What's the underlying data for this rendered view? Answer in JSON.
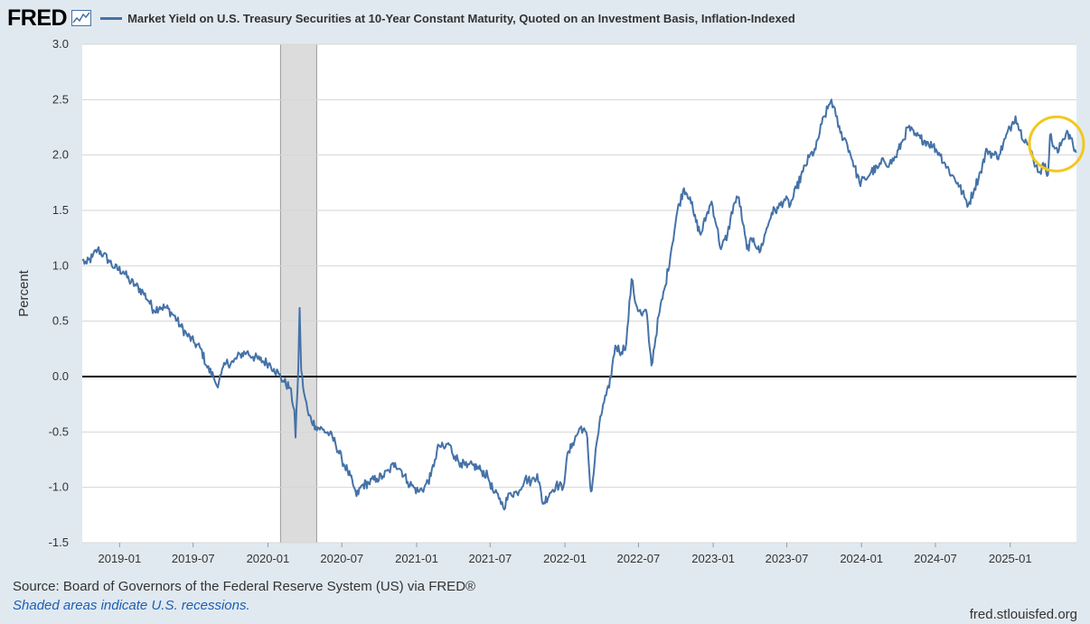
{
  "header": {
    "logo_text": "FRED",
    "series_title": "Market Yield on U.S. Treasury Securities at 10-Year Constant Maturity, Quoted on an Investment Basis, Inflation-Indexed"
  },
  "footer": {
    "source": "Source: Board of Governors of the Federal Reserve System (US) via FRED®",
    "recession_note": "Shaded areas indicate U.S. recessions.",
    "url": "fred.stlouisfed.org"
  },
  "colors": {
    "series": "#4572a7",
    "plot_background": "#ffffff",
    "page_background": "#e1e9f0",
    "recession": "#dcdcdc",
    "zero_line": "#000000",
    "highlight_circle": "#f2c81e"
  },
  "chart_data": {
    "type": "line",
    "ylabel": "Percent",
    "ylim": [
      -1.5,
      3.0
    ],
    "yticks": [
      -1.5,
      -1.0,
      -0.5,
      0.0,
      0.5,
      1.0,
      1.5,
      2.0,
      2.5,
      3.0
    ],
    "ytick_labels": [
      "-1.5",
      "-1.0",
      "-0.5",
      "0.0",
      "0.5",
      "1.0",
      "1.5",
      "2.0",
      "2.5",
      "3.0"
    ],
    "xlim": [
      "2018-10-01",
      "2025-06-13"
    ],
    "xticks": [
      "2019-01",
      "2019-07",
      "2020-01",
      "2020-07",
      "2021-01",
      "2021-07",
      "2022-01",
      "2022-07",
      "2023-01",
      "2023-07",
      "2024-01",
      "2024-07",
      "2025-01"
    ],
    "grid": true,
    "recessions": [
      {
        "start": "2020-02-01",
        "end": "2020-04-30"
      }
    ],
    "annotation": {
      "type": "circle",
      "center": {
        "x": "2025-04-25",
        "y": 2.1
      }
    },
    "series": [
      {
        "name": "Market Yield on U.S. Treasury Securities at 10-Year Constant Maturity, Quoted on an Investment Basis, Inflation-Indexed",
        "points": [
          [
            "2018-10-01",
            1.05
          ],
          [
            "2018-10-12",
            1.02
          ],
          [
            "2018-10-26",
            1.08
          ],
          [
            "2018-11-08",
            1.15
          ],
          [
            "2018-11-22",
            1.1
          ],
          [
            "2018-12-05",
            1.05
          ],
          [
            "2018-12-20",
            0.98
          ],
          [
            "2019-01-10",
            0.95
          ],
          [
            "2019-01-24",
            0.87
          ],
          [
            "2019-02-10",
            0.82
          ],
          [
            "2019-02-28",
            0.76
          ],
          [
            "2019-03-14",
            0.68
          ],
          [
            "2019-03-26",
            0.6
          ],
          [
            "2019-04-10",
            0.63
          ],
          [
            "2019-04-26",
            0.62
          ],
          [
            "2019-05-15",
            0.55
          ],
          [
            "2019-06-01",
            0.45
          ],
          [
            "2019-06-15",
            0.38
          ],
          [
            "2019-07-05",
            0.3
          ],
          [
            "2019-07-20",
            0.25
          ],
          [
            "2019-08-05",
            0.08
          ],
          [
            "2019-08-20",
            0.0
          ],
          [
            "2019-08-28",
            -0.08
          ],
          [
            "2019-09-08",
            0.02
          ],
          [
            "2019-09-20",
            0.12
          ],
          [
            "2019-10-08",
            0.13
          ],
          [
            "2019-10-25",
            0.2
          ],
          [
            "2019-11-10",
            0.22
          ],
          [
            "2019-11-25",
            0.18
          ],
          [
            "2019-12-12",
            0.15
          ],
          [
            "2020-01-03",
            0.12
          ],
          [
            "2020-01-16",
            0.07
          ],
          [
            "2020-01-28",
            0.02
          ],
          [
            "2020-02-10",
            -0.05
          ],
          [
            "2020-02-24",
            -0.1
          ],
          [
            "2020-03-06",
            -0.3
          ],
          [
            "2020-03-09",
            -0.55
          ],
          [
            "2020-03-16",
            0.1
          ],
          [
            "2020-03-19",
            0.62
          ],
          [
            "2020-03-23",
            0.05
          ],
          [
            "2020-03-30",
            -0.15
          ],
          [
            "2020-04-10",
            -0.35
          ],
          [
            "2020-04-28",
            -0.45
          ],
          [
            "2020-05-15",
            -0.48
          ],
          [
            "2020-06-01",
            -0.52
          ],
          [
            "2020-06-15",
            -0.6
          ],
          [
            "2020-07-01",
            -0.75
          ],
          [
            "2020-07-15",
            -0.85
          ],
          [
            "2020-07-31",
            -1.0
          ],
          [
            "2020-08-06",
            -1.08
          ],
          [
            "2020-08-20",
            -0.98
          ],
          [
            "2020-09-05",
            -0.96
          ],
          [
            "2020-09-25",
            -0.92
          ],
          [
            "2020-10-10",
            -0.9
          ],
          [
            "2020-10-25",
            -0.85
          ],
          [
            "2020-11-09",
            -0.78
          ],
          [
            "2020-11-25",
            -0.85
          ],
          [
            "2020-12-10",
            -0.95
          ],
          [
            "2020-12-25",
            -1.0
          ],
          [
            "2021-01-05",
            -1.04
          ],
          [
            "2021-01-20",
            -1.0
          ],
          [
            "2021-02-05",
            -0.9
          ],
          [
            "2021-02-15",
            -0.75
          ],
          [
            "2021-02-25",
            -0.62
          ],
          [
            "2021-03-10",
            -0.65
          ],
          [
            "2021-03-20",
            -0.6
          ],
          [
            "2021-04-05",
            -0.72
          ],
          [
            "2021-04-20",
            -0.78
          ],
          [
            "2021-05-05",
            -0.82
          ],
          [
            "2021-05-20",
            -0.8
          ],
          [
            "2021-06-10",
            -0.85
          ],
          [
            "2021-06-25",
            -0.9
          ],
          [
            "2021-07-10",
            -1.05
          ],
          [
            "2021-07-25",
            -1.1
          ],
          [
            "2021-08-02",
            -1.18
          ],
          [
            "2021-08-20",
            -1.05
          ],
          [
            "2021-09-05",
            -1.05
          ],
          [
            "2021-09-25",
            -0.92
          ],
          [
            "2021-10-10",
            -0.95
          ],
          [
            "2021-10-25",
            -0.88
          ],
          [
            "2021-11-08",
            -1.15
          ],
          [
            "2021-11-25",
            -1.05
          ],
          [
            "2021-12-10",
            -0.98
          ],
          [
            "2021-12-28",
            -1.0
          ],
          [
            "2022-01-05",
            -0.75
          ],
          [
            "2022-01-20",
            -0.6
          ],
          [
            "2022-02-10",
            -0.45
          ],
          [
            "2022-02-25",
            -0.55
          ],
          [
            "2022-03-04",
            -0.98
          ],
          [
            "2022-03-08",
            -1.03
          ],
          [
            "2022-03-20",
            -0.6
          ],
          [
            "2022-04-05",
            -0.25
          ],
          [
            "2022-04-20",
            -0.1
          ],
          [
            "2022-05-05",
            0.28
          ],
          [
            "2022-05-20",
            0.22
          ],
          [
            "2022-06-01",
            0.3
          ],
          [
            "2022-06-14",
            0.88
          ],
          [
            "2022-06-25",
            0.65
          ],
          [
            "2022-07-10",
            0.55
          ],
          [
            "2022-07-20",
            0.6
          ],
          [
            "2022-07-29",
            0.25
          ],
          [
            "2022-08-02",
            0.1
          ],
          [
            "2022-08-20",
            0.55
          ],
          [
            "2022-09-05",
            0.82
          ],
          [
            "2022-09-20",
            1.15
          ],
          [
            "2022-10-05",
            1.5
          ],
          [
            "2022-10-21",
            1.7
          ],
          [
            "2022-11-05",
            1.62
          ],
          [
            "2022-11-15",
            1.45
          ],
          [
            "2022-12-01",
            1.28
          ],
          [
            "2022-12-15",
            1.45
          ],
          [
            "2022-12-28",
            1.58
          ],
          [
            "2023-01-10",
            1.35
          ],
          [
            "2023-01-20",
            1.15
          ],
          [
            "2023-02-05",
            1.28
          ],
          [
            "2023-02-20",
            1.55
          ],
          [
            "2023-03-05",
            1.62
          ],
          [
            "2023-03-15",
            1.38
          ],
          [
            "2023-03-25",
            1.15
          ],
          [
            "2023-04-10",
            1.25
          ],
          [
            "2023-04-25",
            1.12
          ],
          [
            "2023-05-10",
            1.3
          ],
          [
            "2023-05-25",
            1.48
          ],
          [
            "2023-06-10",
            1.52
          ],
          [
            "2023-06-25",
            1.6
          ],
          [
            "2023-07-10",
            1.55
          ],
          [
            "2023-07-25",
            1.7
          ],
          [
            "2023-08-10",
            1.85
          ],
          [
            "2023-08-25",
            1.98
          ],
          [
            "2023-09-10",
            2.05
          ],
          [
            "2023-09-25",
            2.28
          ],
          [
            "2023-10-10",
            2.42
          ],
          [
            "2023-10-19",
            2.5
          ],
          [
            "2023-10-30",
            2.35
          ],
          [
            "2023-11-10",
            2.2
          ],
          [
            "2023-11-25",
            2.12
          ],
          [
            "2023-12-10",
            1.95
          ],
          [
            "2023-12-27",
            1.75
          ],
          [
            "2024-01-10",
            1.78
          ],
          [
            "2024-01-25",
            1.85
          ],
          [
            "2024-02-10",
            1.88
          ],
          [
            "2024-02-25",
            1.95
          ],
          [
            "2024-03-10",
            1.92
          ],
          [
            "2024-03-25",
            1.98
          ],
          [
            "2024-04-10",
            2.12
          ],
          [
            "2024-04-25",
            2.25
          ],
          [
            "2024-05-10",
            2.18
          ],
          [
            "2024-05-25",
            2.15
          ],
          [
            "2024-06-10",
            2.12
          ],
          [
            "2024-06-25",
            2.08
          ],
          [
            "2024-07-10",
            2.02
          ],
          [
            "2024-07-25",
            1.92
          ],
          [
            "2024-08-10",
            1.82
          ],
          [
            "2024-08-25",
            1.75
          ],
          [
            "2024-09-10",
            1.62
          ],
          [
            "2024-09-20",
            1.55
          ],
          [
            "2024-10-05",
            1.7
          ],
          [
            "2024-10-20",
            1.85
          ],
          [
            "2024-11-05",
            2.05
          ],
          [
            "2024-11-20",
            2.0
          ],
          [
            "2024-12-05",
            2.0
          ],
          [
            "2024-12-20",
            2.15
          ],
          [
            "2025-01-05",
            2.28
          ],
          [
            "2025-01-14",
            2.35
          ],
          [
            "2025-01-25",
            2.22
          ],
          [
            "2025-02-10",
            2.12
          ],
          [
            "2025-02-25",
            2.0
          ],
          [
            "2025-03-05",
            1.9
          ],
          [
            "2025-03-15",
            1.85
          ],
          [
            "2025-03-28",
            1.92
          ],
          [
            "2025-04-04",
            1.82
          ],
          [
            "2025-04-09",
            2.18
          ],
          [
            "2025-04-18",
            2.08
          ],
          [
            "2025-04-28",
            2.02
          ],
          [
            "2025-05-08",
            2.12
          ],
          [
            "2025-05-21",
            2.22
          ],
          [
            "2025-05-30",
            2.15
          ],
          [
            "2025-06-05",
            2.08
          ],
          [
            "2025-06-12",
            2.02
          ]
        ]
      }
    ]
  }
}
